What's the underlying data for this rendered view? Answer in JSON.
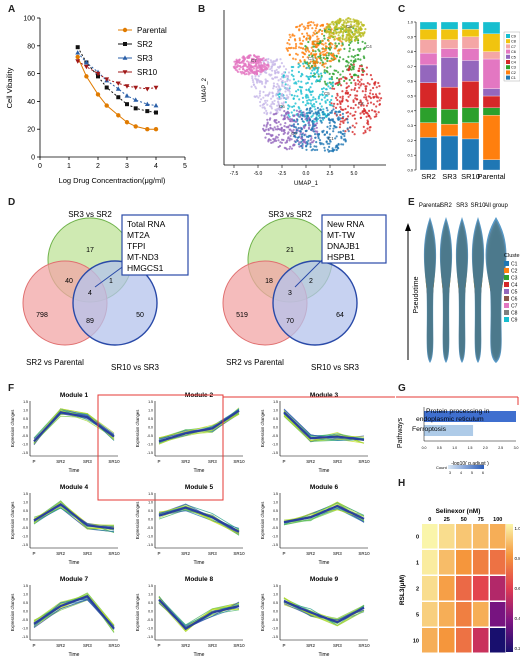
{
  "panels": {
    "A": {
      "letter": "A",
      "xlabel": "Log Drug Concentraction(μg/ml)",
      "ylabel": "Cell Vibaility",
      "xticks": [
        "0",
        "1",
        "2",
        "3",
        "4",
        "5"
      ],
      "yticks": [
        "0",
        "20",
        "40",
        "60",
        "80",
        "100"
      ],
      "legend": [
        "Parental",
        "SR2",
        "SR3",
        "SR10"
      ],
      "colors": [
        "#e07b00",
        "#111111",
        "#2a5fa8",
        "#a01818"
      ]
    },
    "B": {
      "letter": "B",
      "xlabel": "UMAP_1",
      "ylabel": "UMAP_2",
      "xticks": [
        "-7.5",
        "-5.0",
        "-2.5",
        "0.0",
        "2.5",
        "5.0"
      ],
      "cluster_labels": [
        "C1",
        "C2",
        "C3",
        "C4",
        "C5",
        "C6",
        "C7",
        "C8",
        "C9"
      ]
    },
    "C": {
      "letter": "C",
      "xticks": [
        "SR2",
        "SR3",
        "SR10",
        "Parental"
      ],
      "yticks": [
        "0.0",
        "0.1",
        "0.2",
        "0.3",
        "0.4",
        "0.5",
        "0.6",
        "0.7",
        "0.8",
        "0.9",
        "1.0"
      ],
      "legend": [
        "C9",
        "C8",
        "C7",
        "C6",
        "C5",
        "C4",
        "C3",
        "C2",
        "C1"
      ]
    },
    "D": {
      "letter": "D",
      "left": {
        "top_label": "SR3 vs SR2",
        "left_label": "SR2 vs Parental",
        "right_label": "SR10 vs SR3",
        "numbers": [
          "17",
          "40",
          "1",
          "4",
          "798",
          "89",
          "50"
        ],
        "genes": [
          "Total RNA",
          "MT2A",
          "TFPI",
          "MT-ND3",
          "HMGCS1"
        ]
      },
      "right": {
        "top_label": "SR3 vs SR2",
        "left_label": "SR2 vs Parental",
        "right_label": "SR10 vs SR3",
        "numbers": [
          "21",
          "18",
          "2",
          "3",
          "519",
          "70",
          "64"
        ],
        "genes": [
          "New RNA",
          "MT-TW",
          "DNAJB1",
          "HSPB1"
        ]
      }
    },
    "E": {
      "letter": "E",
      "groups": [
        "Parental",
        "SR2",
        "SR3",
        "SR10",
        "All group"
      ],
      "ylabel": "Pseudotime",
      "legend_title": "Cluster",
      "legend": [
        "C1",
        "C2",
        "C3",
        "C4",
        "C5",
        "C6",
        "C7",
        "C8",
        "C9"
      ]
    },
    "F": {
      "letter": "F",
      "modules": [
        "Module 1",
        "Module 2",
        "Module 3",
        "Module 4",
        "Module 5",
        "Module 6",
        "Module 7",
        "Module 8",
        "Module 9"
      ],
      "xticks": [
        "P",
        "SR2",
        "SR3",
        "SR10"
      ],
      "xlabel": "Time",
      "ylabel": "Expression changes"
    },
    "G": {
      "letter": "G",
      "ylabel": "Pathways",
      "pathways": [
        "Protein processing in endoplasmic reticulum",
        "Ferroptosis"
      ],
      "values": [
        3.0,
        1.6
      ],
      "xlabel": "-log10( p.adjust )",
      "legend_title": "Count",
      "legend_ticks": [
        "3",
        "4",
        "5",
        "6"
      ]
    },
    "H": {
      "letter": "H",
      "title": "Selinexor (nM)",
      "cols": [
        "0",
        "25",
        "50",
        "75",
        "100"
      ],
      "rows": [
        "0",
        "1",
        "2",
        "5",
        "10"
      ],
      "ylabel": "RSL3(μM)",
      "scale_ticks": [
        "1.0",
        "0.8",
        "0.6",
        "0.4",
        "0.2"
      ]
    }
  },
  "chart_data": [
    {
      "type": "line",
      "panel": "A",
      "xlabel": "Log Drug Concentraction(μg/ml)",
      "ylabel": "Cell Vibaility",
      "ylim": [
        0,
        100
      ],
      "xlim": [
        0,
        5
      ],
      "x": [
        1.3,
        1.6,
        2.0,
        2.3,
        2.7,
        3.0,
        3.3,
        3.7,
        4.0
      ],
      "series": [
        {
          "name": "Parental",
          "values": [
            72,
            58,
            45,
            37,
            30,
            25,
            22,
            20,
            20
          ]
        },
        {
          "name": "SR2",
          "values": [
            79,
            68,
            58,
            50,
            43,
            38,
            35,
            33,
            32
          ]
        },
        {
          "name": "SR3",
          "values": [
            75,
            68,
            61,
            55,
            49,
            44,
            41,
            38,
            37
          ]
        },
        {
          "name": "SR10",
          "values": [
            69,
            65,
            60,
            56,
            53,
            51,
            50,
            49,
            50
          ]
        }
      ]
    },
    {
      "type": "bar",
      "panel": "C",
      "stacked": true,
      "categories": [
        "SR2",
        "SR3",
        "SR10",
        "Parental"
      ],
      "ylim": [
        0,
        1
      ],
      "series": [
        {
          "name": "C1",
          "values": [
            0.22,
            0.23,
            0.21,
            0.07
          ]
        },
        {
          "name": "C2",
          "values": [
            0.1,
            0.08,
            0.11,
            0.3
          ]
        },
        {
          "name": "C3",
          "values": [
            0.1,
            0.1,
            0.1,
            0.05
          ]
        },
        {
          "name": "C4",
          "values": [
            0.17,
            0.15,
            0.18,
            0.08
          ]
        },
        {
          "name": "C5",
          "values": [
            0.12,
            0.2,
            0.14,
            0.05
          ]
        },
        {
          "name": "C6",
          "values": [
            0.08,
            0.06,
            0.08,
            0.2
          ]
        },
        {
          "name": "C7",
          "values": [
            0.09,
            0.06,
            0.08,
            0.05
          ]
        },
        {
          "name": "C8",
          "values": [
            0.07,
            0.07,
            0.05,
            0.12
          ]
        },
        {
          "name": "C9",
          "values": [
            0.05,
            0.05,
            0.05,
            0.08
          ]
        }
      ]
    },
    {
      "type": "bar",
      "panel": "G",
      "categories": [
        "Protein processing in endoplasmic reticulum",
        "Ferroptosis"
      ],
      "values": [
        3.0,
        1.6
      ],
      "xlabel": "-log10( p.adjust )"
    },
    {
      "type": "heatmap",
      "panel": "H",
      "title": "Selinexor (nM)",
      "x": [
        "0",
        "25",
        "50",
        "75",
        "100"
      ],
      "y": [
        "0",
        "1",
        "2",
        "5",
        "10"
      ],
      "ylabel": "RSL3(μM)",
      "values": [
        [
          1.0,
          0.95,
          0.9,
          0.88,
          0.85
        ],
        [
          0.98,
          0.88,
          0.8,
          0.75,
          0.72
        ],
        [
          0.95,
          0.82,
          0.7,
          0.62,
          0.5
        ],
        [
          0.92,
          0.85,
          0.75,
          0.85,
          0.38
        ],
        [
          0.85,
          0.8,
          0.72,
          0.55,
          0.2
        ]
      ],
      "zlim": [
        0.2,
        1.0
      ]
    }
  ]
}
